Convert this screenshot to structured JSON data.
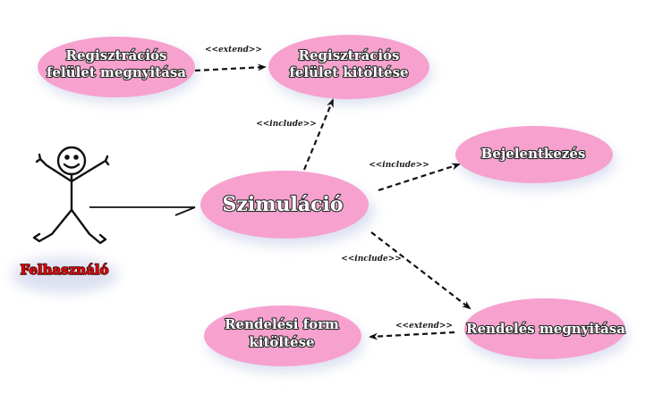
{
  "diagram": {
    "actor": {
      "label": "Felhasználó"
    },
    "use_cases": {
      "reg_open": {
        "line1": "Regisztrációs",
        "line2": "felület megnyitása"
      },
      "reg_fill": {
        "line1": "Regisztrációs",
        "line2": "felület kitöltése"
      },
      "simulation": {
        "label": "Szimuláció"
      },
      "login": {
        "label": "Bejelentkezés"
      },
      "order_open": {
        "label": "Rendelés megnyitása"
      },
      "order_form": {
        "line1": "Rendelési form",
        "line2": "kitöltése"
      }
    },
    "relations": {
      "reg_extend": "<<extend>>",
      "sim_include_reg": "<<include>>",
      "sim_include_login": "<<include>>",
      "sim_include_order": "<<include>>",
      "order_extend_form": "<<extend>>"
    },
    "colors": {
      "usecase_fill": "#f7a1cf",
      "usecase_shadow": "#cdd3ea",
      "actor_label": "#e00000",
      "line": "#111111"
    }
  }
}
